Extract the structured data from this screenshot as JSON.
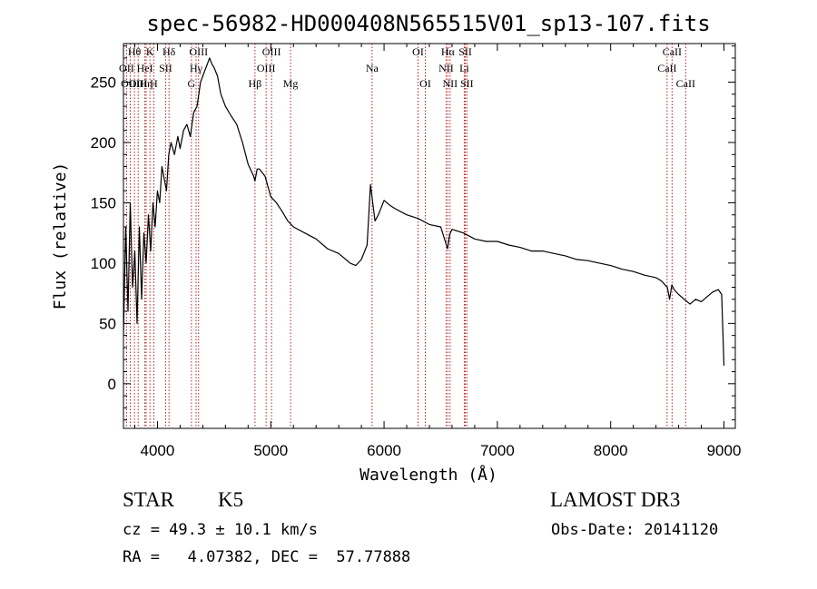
{
  "chart_data": {
    "type": "line",
    "title": "spec-56982-HD000408N565515V01_sp13-107.fits",
    "xlabel": "Wavelength (Å)",
    "ylabel": "Flux (relative)",
    "xlim": [
      3700,
      9100
    ],
    "ylim": [
      -37,
      282
    ],
    "xticks": [
      4000,
      5000,
      6000,
      7000,
      8000,
      9000
    ],
    "yticks": [
      0,
      50,
      100,
      150,
      200,
      250
    ],
    "series": [
      {
        "color": "#000000",
        "x": [
          3700,
          3720,
          3740,
          3760,
          3780,
          3800,
          3820,
          3840,
          3860,
          3880,
          3900,
          3920,
          3940,
          3960,
          3980,
          4000,
          4020,
          4040,
          4060,
          4080,
          4100,
          4120,
          4150,
          4180,
          4200,
          4230,
          4260,
          4290,
          4320,
          4350,
          4380,
          4400,
          4420,
          4440,
          4460,
          4480,
          4500,
          4530,
          4560,
          4600,
          4650,
          4700,
          4750,
          4800,
          4850,
          4860,
          4880,
          4900,
          4950,
          5000,
          5050,
          5100,
          5150,
          5200,
          5300,
          5400,
          5500,
          5600,
          5650,
          5700,
          5750,
          5800,
          5850,
          5880,
          5900,
          5920,
          5950,
          6000,
          6050,
          6100,
          6200,
          6300,
          6400,
          6500,
          6560,
          6580,
          6600,
          6700,
          6800,
          6900,
          7000,
          7100,
          7200,
          7300,
          7400,
          7500,
          7600,
          7700,
          7800,
          7900,
          8000,
          8100,
          8200,
          8300,
          8400,
          8450,
          8500,
          8520,
          8540,
          8560,
          8600,
          8650,
          8700,
          8750,
          8800,
          8850,
          8900,
          8950,
          8980,
          9000
        ],
        "y": [
          40,
          130,
          60,
          150,
          80,
          110,
          50,
          130,
          70,
          125,
          100,
          140,
          110,
          150,
          130,
          160,
          150,
          180,
          170,
          160,
          190,
          200,
          190,
          205,
          195,
          210,
          215,
          205,
          225,
          230,
          250,
          255,
          260,
          265,
          270,
          265,
          262,
          255,
          240,
          230,
          222,
          215,
          200,
          182,
          172,
          168,
          178,
          178,
          172,
          155,
          150,
          143,
          135,
          130,
          125,
          120,
          112,
          108,
          104,
          100,
          98,
          103,
          115,
          165,
          150,
          135,
          140,
          152,
          148,
          145,
          140,
          137,
          132,
          130,
          112,
          124,
          128,
          125,
          120,
          118,
          118,
          115,
          113,
          110,
          110,
          108,
          106,
          103,
          102,
          100,
          98,
          95,
          93,
          90,
          88,
          85,
          80,
          70,
          82,
          78,
          74,
          70,
          66,
          70,
          68,
          72,
          76,
          78,
          74,
          15
        ]
      }
    ],
    "lines": [
      {
        "name": "OII",
        "x": 3727,
        "tier": 1
      },
      {
        "name": "OIII",
        "x": 3760,
        "tier": 2
      },
      {
        "name": "Hθ",
        "x": 3797,
        "tier": 0
      },
      {
        "name": "OIII",
        "x": 3830,
        "tier": 2
      },
      {
        "name": "HeI",
        "x": 3889,
        "tier": 1
      },
      {
        "name": "Hη",
        "x": 3900,
        "tier": 2
      },
      {
        "name": "K",
        "x": 3934,
        "tier": 0
      },
      {
        "name": "H",
        "x": 3968,
        "tier": 2
      },
      {
        "name": "SII",
        "x": 4072,
        "tier": 1
      },
      {
        "name": "Hδ",
        "x": 4102,
        "tier": 0
      },
      {
        "name": "G",
        "x": 4300,
        "tier": 2
      },
      {
        "name": "Hγ",
        "x": 4341,
        "tier": 1
      },
      {
        "name": "OIII",
        "x": 4363,
        "tier": 0
      },
      {
        "name": "Hβ",
        "x": 4861,
        "tier": 2
      },
      {
        "name": "OIII",
        "x": 4959,
        "tier": 1
      },
      {
        "name": "OIII",
        "x": 5007,
        "tier": 0
      },
      {
        "name": "Mg",
        "x": 5175,
        "tier": 2
      },
      {
        "name": "Na",
        "x": 5894,
        "tier": 1
      },
      {
        "name": "OI",
        "x": 6300,
        "tier": 0
      },
      {
        "name": "OI",
        "x": 6364,
        "tier": 2
      },
      {
        "name": "NII",
        "x": 6548,
        "tier": 1
      },
      {
        "name": "Hα",
        "x": 6563,
        "tier": 0
      },
      {
        "name": "NII",
        "x": 6583,
        "tier": 2
      },
      {
        "name": "Li",
        "x": 6708,
        "tier": 1
      },
      {
        "name": "SII",
        "x": 6717,
        "tier": 0
      },
      {
        "name": "SII",
        "x": 6731,
        "tier": 2
      },
      {
        "name": "CaII",
        "x": 8498,
        "tier": 1
      },
      {
        "name": "CaII",
        "x": 8542,
        "tier": 0
      },
      {
        "name": "CaII",
        "x": 8662,
        "tier": 2
      }
    ],
    "line_color": "#b22222"
  },
  "info": {
    "object": "STAR",
    "subclass": "K5",
    "survey": "LAMOST DR3",
    "redshift": "cz = 49.3 ± 10.1 km/s",
    "obsdate": "Obs-Date: 20141120",
    "coords": "RA =   4.07382, DEC =  57.77888"
  }
}
